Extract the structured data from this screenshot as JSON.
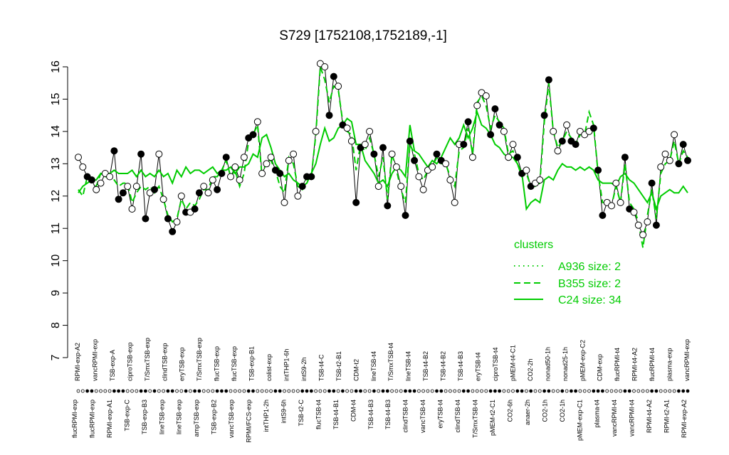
{
  "chart_data": {
    "type": "line",
    "title": "S729 [1752108,1752189,-1]",
    "xlabel": "",
    "ylabel": "",
    "ylim": [
      7,
      16
    ],
    "yticks": [
      "7",
      "8",
      "9",
      "10",
      "11",
      "12",
      "13",
      "14",
      "15",
      "16"
    ],
    "grid": false,
    "legend": {
      "title": "clusters",
      "placement": "right",
      "entries": [
        {
          "label": "A936 size: 2",
          "style": "dotted"
        },
        {
          "label": "B355 size: 2",
          "style": "dashed"
        },
        {
          "label": "C24 size: 34",
          "style": "solid"
        }
      ]
    },
    "x_labels_upper": [
      "RPMI-exp-A2",
      "vancRPMI-exp",
      "TSB-exp-A",
      "ciproTSB-exp",
      "T/SmxTSB-exp",
      "clindTSB-exp",
      "eryTSB-exp",
      "T/SmxTSB-exp",
      "flucTSB-exp",
      "flucTSB-exp",
      "TSB-exp-B1",
      "colist-exp",
      "intTHP1-6h",
      "intS9-2h",
      "TSB-t4-C",
      "TSB-t2-B1",
      "CDM-t2",
      "lineTSB-t4",
      "T/SmxTSB-t4",
      "lineTSB-t4",
      "TSB-t4-B2",
      "TSB-t4-B2",
      "TSB-t4-B3",
      "eryTSB-t4",
      "ciproTSB-t4",
      "pMEM-t4-C1",
      "CO2-2h",
      "nonad50-1h",
      "nonad25-1h",
      "pMEM-exp-C2",
      "CDM-exp",
      "flucRPMI-t4",
      "RPMI-t4-A2",
      "flucRPMI-t4",
      "plasma-exp",
      "vancRPMI-exp"
    ],
    "x_labels_lower": [
      "flucRPMI-exp",
      "flucRPMI-exp",
      "RPMI-exp-A1",
      "TSB-exp-C",
      "TSB-exp-B3",
      "lineTSB-exp",
      "lineTSB-exp",
      "ampTSB-exp",
      "TSB-exp-B2",
      "vancTSB-exp",
      "RPMI/FCS-exp",
      "intTHP1-2h",
      "intS9-6h",
      "TSB-t2-C",
      "flucTSB-t4",
      "TSB-t4-B1",
      "CDM-t4",
      "TSB-t4-B3",
      "TSB-t4-B3",
      "clindTSB-t4",
      "vancTSB-t4",
      "eryTSB-t4",
      "clindTSB-t4",
      "T/SmxTSB-t4",
      "pMEM-t2-C1",
      "CO2-6h",
      "anaer-2h",
      "CO2-1h",
      "CO2-1h",
      "pMEM-exp-C1",
      "plasma-t4",
      "vancRPMI-t4",
      "vancRPMI-t4",
      "RPMI-t4-A2",
      "RPMI-t2-A1",
      "RPMI-exp-A2"
    ],
    "series": [
      {
        "values": [
          13.2,
          12.9,
          12.6,
          12.5,
          12.2,
          12.4,
          12.7,
          12.6,
          13.4,
          11.9,
          12.1,
          12.3,
          11.6,
          12.3,
          13.3,
          11.3,
          12.1,
          12.2,
          13.3,
          11.9,
          11.3,
          10.9,
          11.2,
          12.0,
          11.5,
          11.5,
          11.6,
          12.1,
          12.3,
          12.1,
          12.5,
          12.2,
          12.7,
          13.2,
          12.6,
          12.9,
          12.5,
          13.2,
          13.8,
          13.9,
          14.3,
          12.7,
          13.0,
          13.2,
          12.8,
          12.7,
          11.8,
          13.1,
          13.3,
          12.0,
          12.3,
          12.6,
          12.6,
          14.0,
          16.1,
          16.0,
          14.5,
          15.7,
          15.4,
          14.2,
          14.1,
          13.7,
          11.8,
          13.5,
          13.6,
          14.0,
          13.3,
          12.3,
          13.5,
          11.7,
          13.3,
          12.9,
          12.3,
          11.4,
          13.7,
          13.1,
          12.6,
          12.2,
          12.8,
          12.9,
          13.3,
          13.1,
          13.0,
          12.5,
          11.8,
          13.6,
          13.6,
          14.3,
          13.2,
          14.8,
          15.2,
          15.1,
          13.9,
          14.7,
          14.2,
          14.0,
          13.2,
          13.6,
          13.2,
          12.7,
          12.8,
          12.3,
          12.4,
          12.5,
          14.5,
          15.6,
          14.0,
          13.4,
          13.7,
          14.2,
          13.7,
          13.6,
          14.0,
          13.9,
          14.0,
          14.1,
          12.8,
          11.4,
          11.8,
          11.7,
          12.4,
          11.8,
          13.2,
          11.6,
          11.5,
          11.1,
          10.8,
          11.2,
          12.4,
          11.1,
          12.9,
          13.3,
          13.1,
          13.9,
          13.0,
          13.6,
          13.1
        ],
        "markers": "mixed"
      },
      {
        "values": [
          12.2,
          12.0,
          12.6,
          12.5,
          12.3,
          12.7,
          12.6,
          12.6,
          12.5,
          12.3,
          12.4,
          12.4,
          11.8,
          12.1,
          12.3,
          12.2,
          12.3,
          12.1,
          12.3,
          11.9,
          11.4,
          11.2,
          11.3,
          11.9,
          11.6,
          11.8,
          11.7,
          11.9,
          12.2,
          12.2,
          12.6,
          12.6,
          12.8,
          13.1,
          12.6,
          12.8,
          12.3,
          12.7,
          13.7,
          13.9,
          14.2,
          12.6,
          13.1,
          13.1,
          12.8,
          12.3,
          12.1,
          13.2,
          13.0,
          12.3,
          12.2,
          12.6,
          12.6,
          13.9,
          16.0,
          15.6,
          14.9,
          15.4,
          15.3,
          14.3,
          14.0,
          13.9,
          12.8,
          13.6,
          13.4,
          13.8,
          13.3,
          12.6,
          13.2,
          11.9,
          13.3,
          12.8,
          12.2,
          11.8,
          13.6,
          13.3,
          12.7,
          12.5,
          12.8,
          12.9,
          13.2,
          13.0,
          13.0,
          12.6,
          12.3,
          13.4,
          13.5,
          14.1,
          13.3,
          14.9,
          15.1,
          14.8,
          14.1,
          14.5,
          14.3,
          14.1,
          13.3,
          13.4,
          13.0,
          12.6,
          12.7,
          12.3,
          12.3,
          12.4,
          14.3,
          15.5,
          14.0,
          13.5,
          13.7,
          14.0,
          13.8,
          13.6,
          13.9,
          13.9,
          14.6,
          14.2,
          12.7,
          11.8,
          11.8,
          11.7,
          12.3,
          11.8,
          13.0,
          11.8,
          11.6,
          11.2,
          10.4,
          11.4,
          12.2,
          11.3,
          12.7,
          13.0,
          13.1,
          13.7,
          13.0,
          13.4,
          13.2
        ],
        "markers": "none"
      },
      {
        "values": [
          12.1,
          12.3,
          12.4,
          12.5,
          12.5,
          12.7,
          12.7,
          12.7,
          12.8,
          12.7,
          12.7,
          12.7,
          12.8,
          12.6,
          12.8,
          12.6,
          12.7,
          12.6,
          12.8,
          12.6,
          12.7,
          12.4,
          12.8,
          12.6,
          12.9,
          12.7,
          12.8,
          12.8,
          12.7,
          12.8,
          12.9,
          12.7,
          12.8,
          12.8,
          12.9,
          12.7,
          12.9,
          12.9,
          13.0,
          13.3,
          13.2,
          13.8,
          13.9,
          13.5,
          13.0,
          12.8,
          12.6,
          12.7,
          12.5,
          12.4,
          12.3,
          12.4,
          12.7,
          13.0,
          13.6,
          14.1,
          13.7,
          13.8,
          14.1,
          14.2,
          14.4,
          14.3,
          13.6,
          13.6,
          13.1,
          12.9,
          12.7,
          12.4,
          12.5,
          12.3,
          12.7,
          12.9,
          12.8,
          12.6,
          14.2,
          13.4,
          13.3,
          13.1,
          12.9,
          13.1,
          13.0,
          13.2,
          13.5,
          13.8,
          13.6,
          13.8,
          14.2,
          13.8,
          14.1,
          14.6,
          14.2,
          14.1,
          13.9,
          13.6,
          13.5,
          13.3,
          13.2,
          13.2,
          13.0,
          12.7,
          11.6,
          11.8,
          11.9,
          11.8,
          12.5,
          12.6,
          12.5,
          12.8,
          13.0,
          12.9,
          12.9,
          12.8,
          12.9,
          12.8,
          12.9,
          12.8,
          12.5,
          12.4,
          12.4,
          12.4,
          12.3,
          12.6,
          12.7,
          12.5,
          12.4,
          12.2,
          12.0,
          11.8,
          12.1,
          11.6,
          12.0,
          12.1,
          12.2,
          12.1,
          12.1,
          12.3,
          12.1
        ],
        "markers": "none"
      }
    ]
  }
}
